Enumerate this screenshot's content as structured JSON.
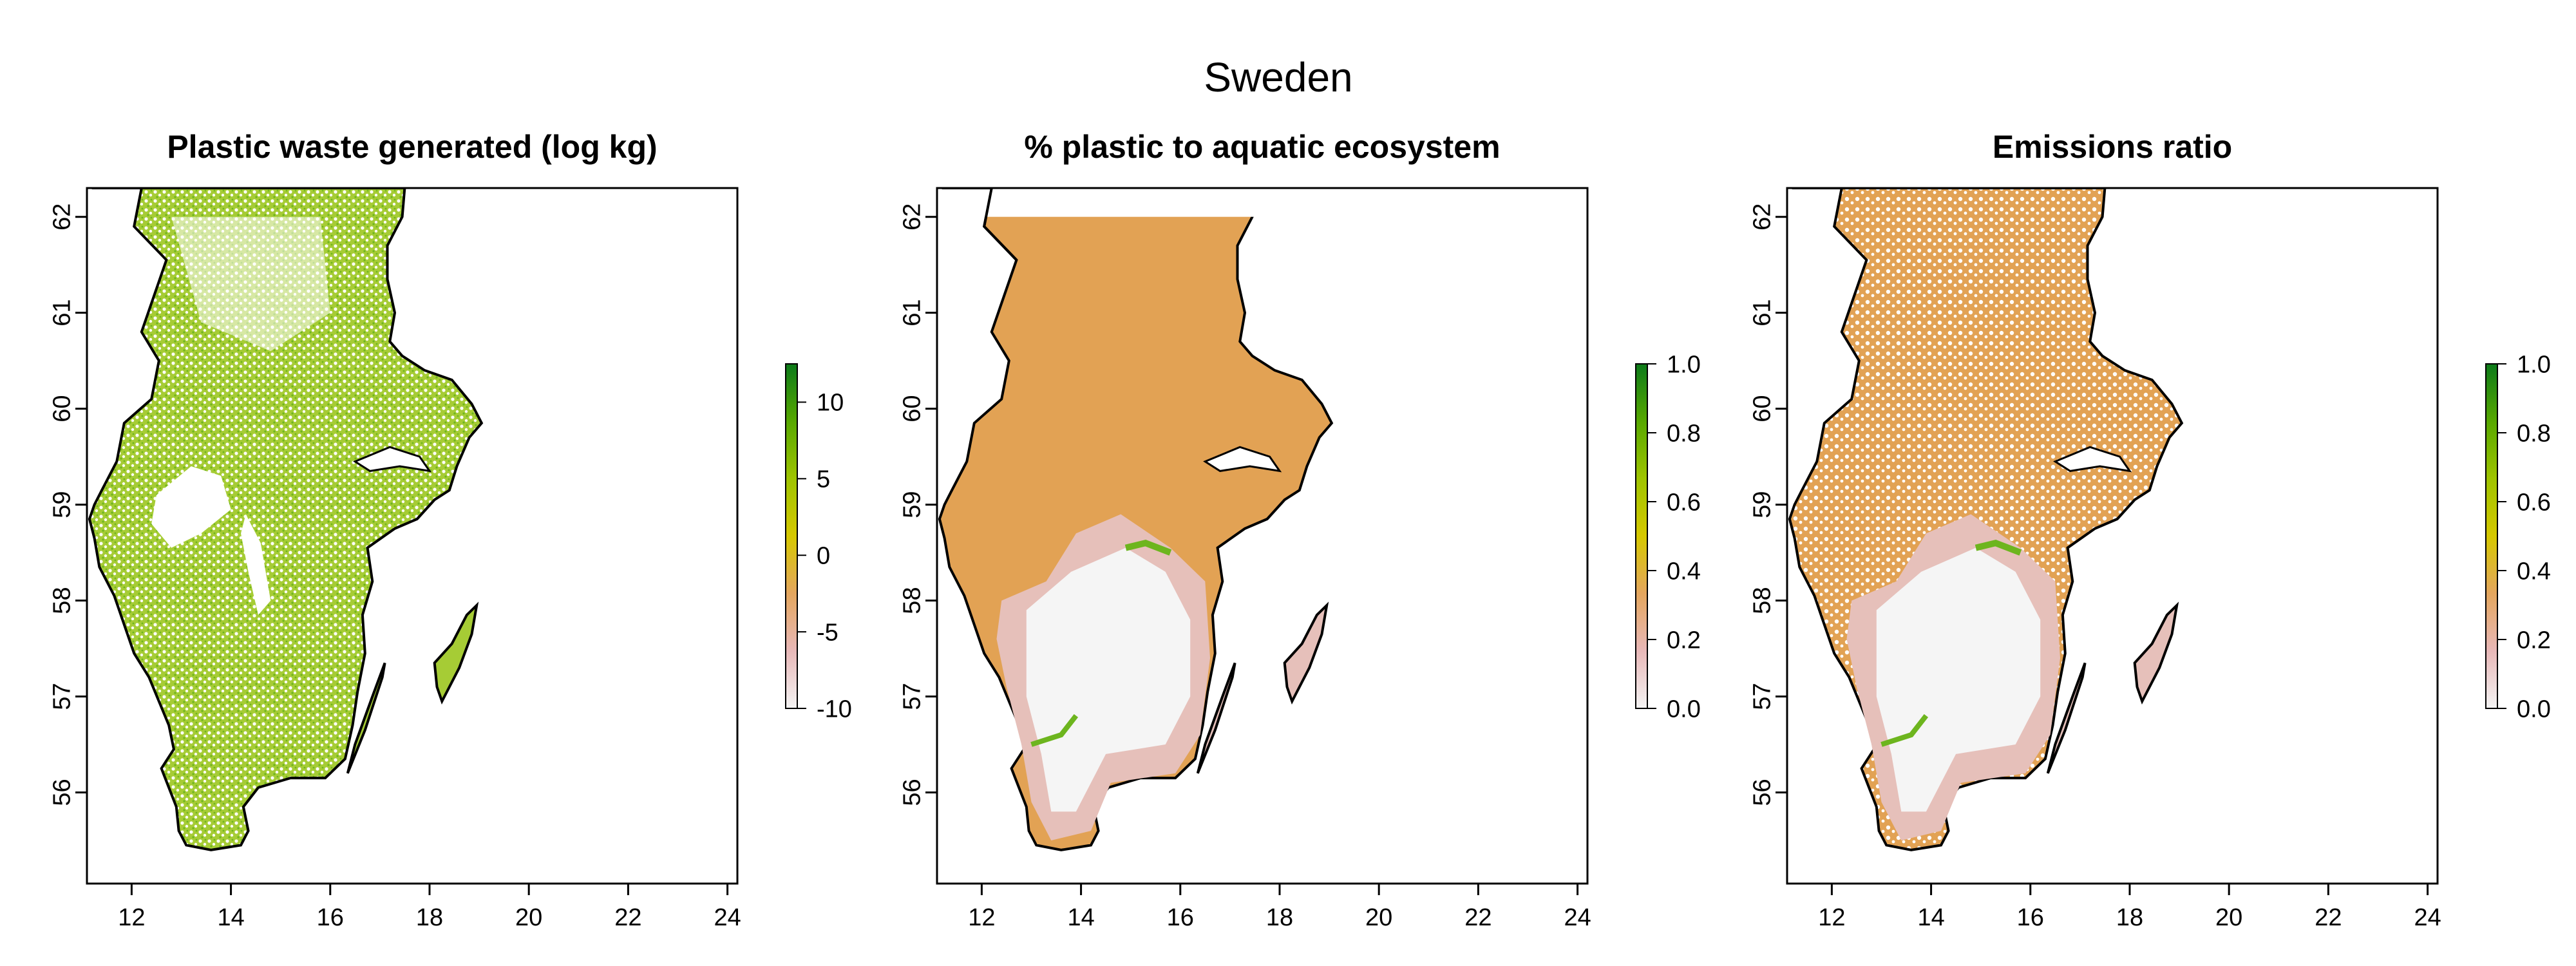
{
  "figure": {
    "title": "Sweden",
    "x_ticks": [
      "12",
      "14",
      "16",
      "18",
      "20",
      "22",
      "24"
    ],
    "y_ticks": [
      "56",
      "57",
      "58",
      "59",
      "60",
      "61",
      "62"
    ]
  },
  "panels": [
    {
      "title": "Plastic waste generated (log kg)",
      "legend": {
        "ticks": [
          "10",
          "5",
          "0",
          "-5",
          "-10"
        ],
        "range": [
          -10,
          12.5
        ],
        "colors": [
          "#F4F4F4",
          "#E8B8B8",
          "#E4A65E",
          "#D6C800",
          "#9FC400",
          "#57A800",
          "#0C7A1A"
        ]
      },
      "style": "waste"
    },
    {
      "title": "% plastic to aquatic ecosystem",
      "legend": {
        "ticks": [
          "1.0",
          "0.8",
          "0.6",
          "0.4",
          "0.2",
          "0.0"
        ],
        "range": [
          0,
          1
        ],
        "colors": [
          "#F4F4F4",
          "#E8B8B8",
          "#E4A65E",
          "#D6C800",
          "#9FC400",
          "#57A800",
          "#0C7A1A"
        ]
      },
      "style": "aquatic"
    },
    {
      "title": "Emissions ratio",
      "legend": {
        "ticks": [
          "1.0",
          "0.8",
          "0.6",
          "0.4",
          "0.2",
          "0.0"
        ],
        "range": [
          0,
          1
        ],
        "colors": [
          "#F4F4F4",
          "#E8B8B8",
          "#E4A65E",
          "#D6C800",
          "#9FC400",
          "#57A800",
          "#0C7A1A"
        ]
      },
      "style": "emissions"
    }
  ],
  "colors": {
    "land_fill": "#E2A254",
    "green": "#6DB51E",
    "light_green": "#A6CC35",
    "white_area": "#F5F5F5",
    "pink": "#E6C0BA",
    "coast": "#000000"
  }
}
